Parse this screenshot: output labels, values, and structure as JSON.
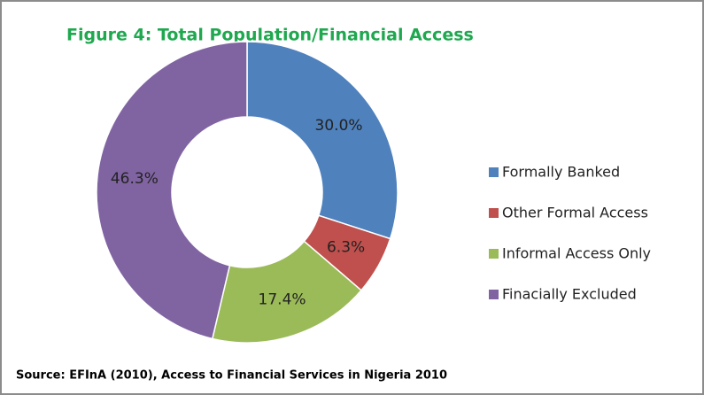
{
  "chart_data": {
    "type": "donut",
    "title": "Figure 4:  Total  Population/Financial Access",
    "categories": [
      "Formally Banked",
      "Other Formal Access",
      "Informal Access Only",
      "Finacially Excluded"
    ],
    "values": [
      30.0,
      6.3,
      17.4,
      46.3
    ],
    "value_labels": [
      "30.0%",
      "6.3%",
      "17.4%",
      "46.3%"
    ],
    "colors": [
      "#4f81bd",
      "#c0504d",
      "#9bbb59",
      "#8064a2"
    ],
    "legend": "right",
    "source": "Source: EFInA (2010), Access to Financial Services in Nigeria 2010"
  }
}
